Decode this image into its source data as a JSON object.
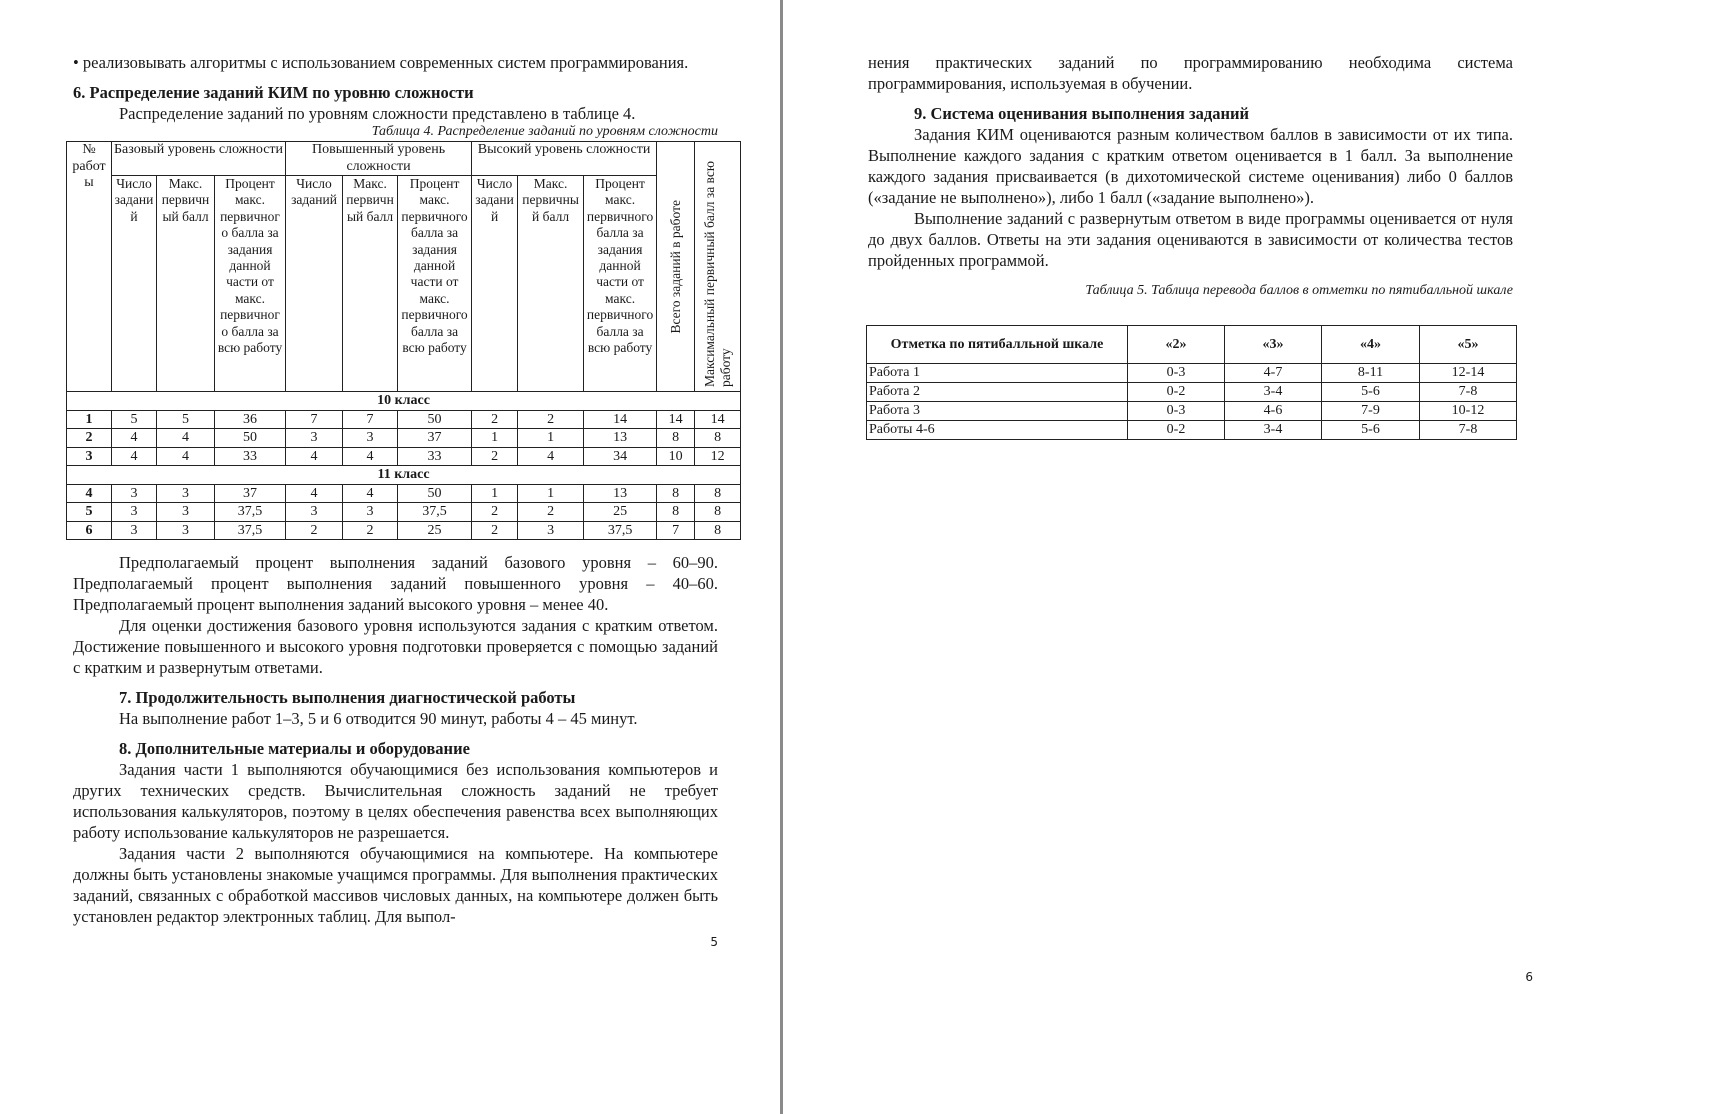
{
  "page5": {
    "bullet": "• реализовывать алгоритмы с использованием современных систем программирования.",
    "h6": "6. Распределение заданий КИМ по уровню сложности",
    "p6": "Распределение заданий по уровням сложности представлено в таблице 4.",
    "table4_caption": "Таблица 4. Распределение заданий по уровням сложности",
    "table4": {
      "col_num": "№ работы",
      "group_basic": "Базовый уровень сложности",
      "group_advanced": "Повышенный уровень сложности",
      "group_high": "Высокий уровень сложности",
      "sub_basic": [
        "Число заданий",
        "Макс. первичный балл",
        "Процент макс. первичного балла за задания данной части от макс. первичного балла за всю работу"
      ],
      "sub_advanced": [
        "Число заданий",
        "Макс. первичный балл",
        "Процент макс. первичного балла за задания данной части от макс. первичного балла за всю работу"
      ],
      "sub_high": [
        "Число заданий",
        "Макс. первичный балл",
        "Процент макс. первичного балла за задания данной части от макс. первичного балла за всю работу"
      ],
      "col_total": "Всего заданий в работе",
      "col_max": "Максимальный первичный балл за всю работу",
      "sections": [
        {
          "label": "10 класс",
          "rows": [
            [
              "1",
              "5",
              "5",
              "36",
              "7",
              "7",
              "50",
              "2",
              "2",
              "14",
              "14",
              "14"
            ],
            [
              "2",
              "4",
              "4",
              "50",
              "3",
              "3",
              "37",
              "1",
              "1",
              "13",
              "8",
              "8"
            ],
            [
              "3",
              "4",
              "4",
              "33",
              "4",
              "4",
              "33",
              "2",
              "4",
              "34",
              "10",
              "12"
            ]
          ]
        },
        {
          "label": "11 класс",
          "rows": [
            [
              "4",
              "3",
              "3",
              "37",
              "4",
              "4",
              "50",
              "1",
              "1",
              "13",
              "8",
              "8"
            ],
            [
              "5",
              "3",
              "3",
              "37,5",
              "3",
              "3",
              "37,5",
              "2",
              "2",
              "25",
              "8",
              "8"
            ],
            [
              "6",
              "3",
              "3",
              "37,5",
              "2",
              "2",
              "25",
              "2",
              "3",
              "37,5",
              "7",
              "8"
            ]
          ]
        }
      ]
    },
    "p_after": [
      "Предполагаемый процент выполнения заданий базового уровня – 60–90. Предполагаемый процент выполнения заданий повышенного уровня – 40–60. Предполагаемый процент выполнения заданий высокого уровня – менее 40.",
      "Для оценки достижения базового уровня используются задания с кратким ответом. Достижение повышенного и высокого уровня подготовки проверяется с помощью заданий с кратким и развернутым ответами."
    ],
    "h7": "7. Продолжительность выполнения диагностической работы",
    "p7": "На выполнение работ 1–3, 5 и 6 отводится 90 минут, работы 4 – 45 минут.",
    "h8": "8. Дополнительные материалы и оборудование",
    "p8": [
      "Задания части 1 выполняются обучающимися без использования компьютеров и других технических средств. Вычислительная сложность заданий не требует использования калькуляторов, поэтому в целях обеспечения равенства всех выполняющих работу использование калькуляторов не разрешается.",
      "Задания части 2 выполняются обучающимися на компьютере. На компьютере должны быть установлены знакомые учащимся программы. Для выполнения практических заданий, связанных с обработкой массивов числовых данных, на компьютере должен быть установлен редактор электронных таблиц. Для выпол-"
    ],
    "page_number": "5"
  },
  "page6": {
    "p_cont": "нения практических заданий по программированию необходима система программирования, используемая в обучении.",
    "h9": "9. Система оценивания выполнения заданий",
    "p9": [
      "Задания КИМ оцениваются разным количеством баллов в зависимости от их типа. Выполнение каждого задания с кратким ответом оценивается в 1 балл. За выполнение каждого задания присваивается (в дихотомической системе оценивания) либо 0 баллов («задание не выполнено»), либо 1 балл («задание выполнено»).",
      "Выполнение заданий с развернутым ответом в виде программы оценивается от нуля до двух баллов. Ответы на эти задания оцениваются в зависимости от количества тестов пройденных программой."
    ],
    "table5_caption": "Таблица 5. Таблица перевода баллов в отметки по пятибалльной шкале",
    "table5": {
      "headers": [
        "Отметка по пятибалльной шкале",
        "«2»",
        "«3»",
        "«4»",
        "«5»"
      ],
      "rows": [
        [
          "Работа 1",
          "0-3",
          "4-7",
          "8-11",
          "12-14"
        ],
        [
          "Работа 2",
          "0-2",
          "3-4",
          "5-6",
          "7-8"
        ],
        [
          "Работа 3",
          "0-3",
          "4-6",
          "7-9",
          "10-12"
        ],
        [
          "Работы 4-6",
          "0-2",
          "3-4",
          "5-6",
          "7-8"
        ]
      ]
    },
    "page_number": "6"
  }
}
